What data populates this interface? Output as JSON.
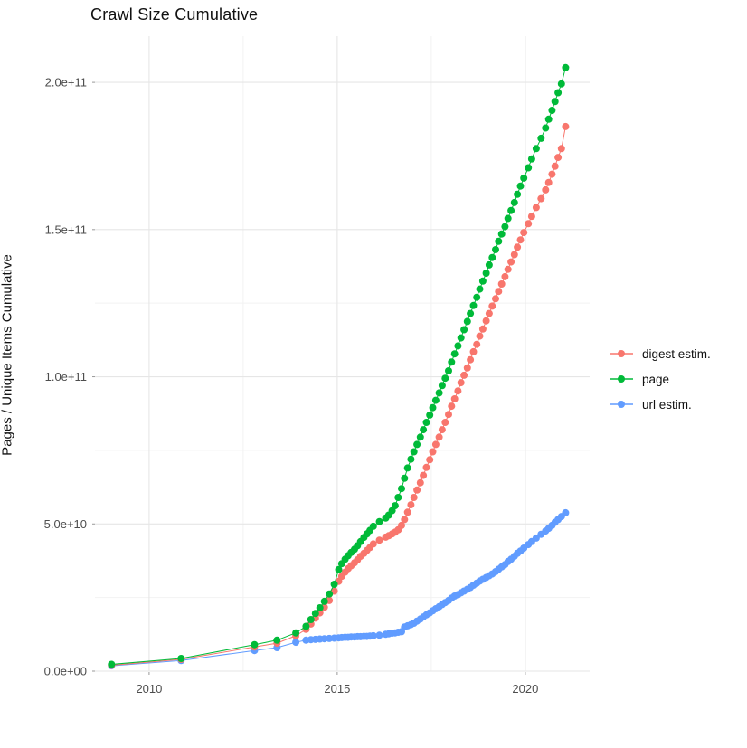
{
  "page": {
    "title": "Crawl Size Cumulative"
  },
  "chart_data": {
    "type": "scatter",
    "title": "Crawl Size Cumulative",
    "xlabel": "",
    "ylabel": "Pages / Unique Items Cumulative",
    "grid": true,
    "legend_position": "right",
    "xlim": [
      2008.56,
      2021.71
    ],
    "ylim": [
      0,
      215700000000.0
    ],
    "x_ticks": [
      {
        "v": 2010,
        "label": "2010"
      },
      {
        "v": 2015,
        "label": "2015"
      },
      {
        "v": 2020,
        "label": "2020"
      }
    ],
    "x_minor_ticks": [
      2012.5,
      2017.5
    ],
    "y_ticks": [
      {
        "v": 0,
        "label": "0.0e+00"
      },
      {
        "v": 50000000000.0,
        "label": "5.0e+10"
      },
      {
        "v": 100000000000.0,
        "label": "1.0e+11"
      },
      {
        "v": 150000000000.0,
        "label": "1.5e+11"
      },
      {
        "v": 200000000000.0,
        "label": "2.0e+11"
      }
    ],
    "y_minor_ticks": [
      25000000000.0,
      75000000000.0,
      125000000000.0,
      175000000000.0
    ],
    "x": [
      2009.0,
      2010.85,
      2012.8,
      2013.4,
      2013.9,
      2014.17,
      2014.3,
      2014.42,
      2014.54,
      2014.66,
      2014.79,
      2014.92,
      2015.04,
      2015.12,
      2015.21,
      2015.29,
      2015.37,
      2015.46,
      2015.54,
      2015.62,
      2015.71,
      2015.79,
      2015.87,
      2015.96,
      2016.12,
      2016.29,
      2016.37,
      2016.46,
      2016.54,
      2016.62,
      2016.71,
      2016.79,
      2016.87,
      2016.96,
      2017.04,
      2017.12,
      2017.21,
      2017.29,
      2017.37,
      2017.46,
      2017.54,
      2017.62,
      2017.71,
      2017.79,
      2017.87,
      2017.96,
      2018.04,
      2018.12,
      2018.21,
      2018.29,
      2018.37,
      2018.46,
      2018.54,
      2018.62,
      2018.71,
      2018.79,
      2018.87,
      2018.96,
      2019.04,
      2019.12,
      2019.21,
      2019.29,
      2019.37,
      2019.46,
      2019.54,
      2019.62,
      2019.71,
      2019.79,
      2019.87,
      2019.96,
      2020.08,
      2020.17,
      2020.29,
      2020.42,
      2020.54,
      2020.62,
      2020.71,
      2020.79,
      2020.87,
      2020.96,
      2021.07
    ],
    "series": [
      {
        "name": "url estim.",
        "color": "#619CFF",
        "values": [
          1800000000.0,
          3600000000.0,
          7000000000.0,
          8000000000.0,
          9800000000.0,
          10500000000.0,
          10700000000.0,
          10800000000.0,
          10900000000.0,
          11000000000.0,
          11100000000.0,
          11200000000.0,
          11300000000.0,
          11400000000.0,
          11500000000.0,
          11500000000.0,
          11600000000.0,
          11600000000.0,
          11700000000.0,
          11700000000.0,
          11800000000.0,
          11800000000.0,
          11900000000.0,
          12000000000.0,
          12200000000.0,
          12500000000.0,
          12700000000.0,
          12900000000.0,
          13000000000.0,
          13200000000.0,
          13400000000.0,
          15000000000.0,
          15400000000.0,
          15800000000.0,
          16300000000.0,
          17000000000.0,
          17700000000.0,
          18400000000.0,
          19100000000.0,
          19800000000.0,
          20500000000.0,
          21200000000.0,
          21900000000.0,
          22600000000.0,
          23300000000.0,
          24000000000.0,
          24800000000.0,
          25500000000.0,
          26000000000.0,
          26600000000.0,
          27200000000.0,
          27800000000.0,
          28400000000.0,
          29200000000.0,
          29900000000.0,
          30600000000.0,
          31200000000.0,
          31800000000.0,
          32400000000.0,
          33000000000.0,
          33800000000.0,
          34600000000.0,
          35400000000.0,
          36200000000.0,
          37200000000.0,
          38000000000.0,
          39000000000.0,
          40000000000.0,
          40800000000.0,
          41800000000.0,
          43000000000.0,
          44000000000.0,
          45200000000.0,
          46500000000.0,
          47600000000.0,
          48500000000.0,
          49500000000.0,
          50500000000.0,
          51500000000.0,
          52500000000.0,
          53800000000.0
        ]
      },
      {
        "name": "digest estim.",
        "color": "#F8766D",
        "values": [
          2000000000.0,
          4000000000.0,
          8200000000.0,
          9500000000.0,
          12000000000.0,
          14200000000.0,
          16000000000.0,
          18000000000.0,
          19800000000.0,
          21700000000.0,
          24000000000.0,
          27200000000.0,
          30500000000.0,
          32200000000.0,
          33600000000.0,
          34800000000.0,
          35800000000.0,
          36800000000.0,
          37800000000.0,
          39000000000.0,
          40000000000.0,
          41000000000.0,
          42000000000.0,
          43200000000.0,
          44500000000.0,
          45500000000.0,
          46000000000.0,
          46600000000.0,
          47200000000.0,
          48000000000.0,
          49500000000.0,
          51500000000.0,
          54000000000.0,
          56500000000.0,
          59000000000.0,
          61500000000.0,
          64000000000.0,
          66500000000.0,
          69200000000.0,
          71800000000.0,
          74500000000.0,
          77000000000.0,
          79500000000.0,
          82000000000.0,
          84500000000.0,
          87200000000.0,
          90000000000.0,
          92500000000.0,
          95200000000.0,
          98000000000.0,
          100500000000.0,
          103000000000.0,
          105800000000.0,
          108500000000.0,
          111000000000.0,
          113800000000.0,
          116200000000.0,
          119000000000.0,
          121500000000.0,
          124000000000.0,
          126500000000.0,
          129000000000.0,
          131500000000.0,
          134000000000.0,
          136500000000.0,
          139000000000.0,
          141500000000.0,
          144000000000.0,
          146500000000.0,
          149000000000.0,
          152000000000.0,
          154500000000.0,
          157500000000.0,
          160500000000.0,
          163500000000.0,
          166000000000.0,
          168800000000.0,
          171500000000.0,
          174500000000.0,
          177500000000.0,
          185000000000.0
        ]
      },
      {
        "name": "page",
        "color": "#00BA38",
        "values": [
          2300000000.0,
          4300000000.0,
          9000000000.0,
          10500000000.0,
          13000000000.0,
          15200000000.0,
          17500000000.0,
          19600000000.0,
          21500000000.0,
          23700000000.0,
          26200000000.0,
          29500000000.0,
          34500000000.0,
          36500000000.0,
          38000000000.0,
          39200000000.0,
          40300000000.0,
          41400000000.0,
          42600000000.0,
          44000000000.0,
          45400000000.0,
          46600000000.0,
          47800000000.0,
          49200000000.0,
          50800000000.0,
          52000000000.0,
          53000000000.0,
          54500000000.0,
          56200000000.0,
          59000000000.0,
          62000000000.0,
          65500000000.0,
          69000000000.0,
          72000000000.0,
          74500000000.0,
          77000000000.0,
          79500000000.0,
          82000000000.0,
          84500000000.0,
          87000000000.0,
          89500000000.0,
          92000000000.0,
          94500000000.0,
          97000000000.0,
          99500000000.0,
          102000000000.0,
          105000000000.0,
          107800000000.0,
          110500000000.0,
          113200000000.0,
          116000000000.0,
          118800000000.0,
          121500000000.0,
          124200000000.0,
          127000000000.0,
          129800000000.0,
          132500000000.0,
          135200000000.0,
          138000000000.0,
          140500000000.0,
          143200000000.0,
          146000000000.0,
          148500000000.0,
          151000000000.0,
          153800000000.0,
          156500000000.0,
          159200000000.0,
          162000000000.0,
          164800000000.0,
          167500000000.0,
          171000000000.0,
          174000000000.0,
          177500000000.0,
          181000000000.0,
          184500000000.0,
          187500000000.0,
          190500000000.0,
          193500000000.0,
          196500000000.0,
          199500000000.0,
          205000000000.0
        ]
      }
    ],
    "legend_order": [
      "digest estim.",
      "page",
      "url estim."
    ],
    "colors": {
      "digest_estim": "#F8766D",
      "page": "#00BA38",
      "url_estim": "#619CFF",
      "grid_major": "#E6E6E6",
      "grid_minor": "#F2F2F2",
      "tick_text": "#4d4d4d"
    }
  }
}
